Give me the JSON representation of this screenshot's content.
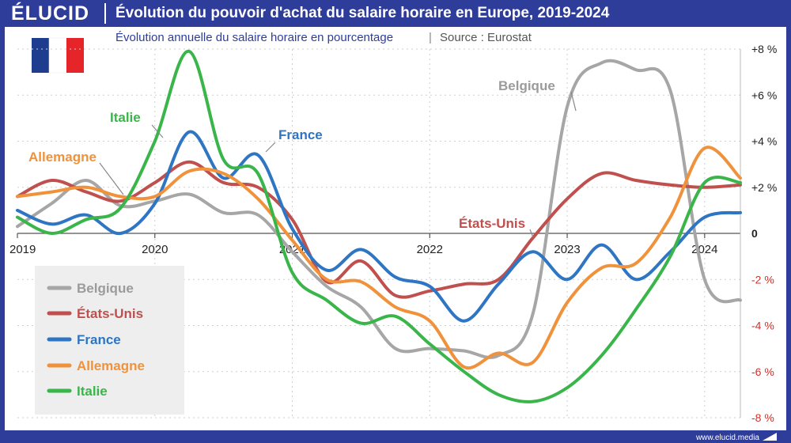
{
  "brand": {
    "logo": "ÉLUCID",
    "website": "www.elucid.media"
  },
  "title": "Évolution du pouvoir d'achat du salaire horaire en Europe, 2019-2024",
  "subtitle": "Évolution annuelle du salaire horaire en pourcentage",
  "source": "Source : Eurostat",
  "source_sep": "|",
  "flag": {
    "name": "France",
    "colors": [
      "#1f3d8f",
      "#ffffff",
      "#e5252a"
    ]
  },
  "chart_data": {
    "type": "line",
    "title": "Évolution du pouvoir d'achat du salaire horaire en Europe, 2019-2024",
    "x_labels": [
      "2019",
      "2020",
      "2021",
      "2022",
      "2023",
      "2024"
    ],
    "x_ticks": [
      2019,
      2020,
      2021,
      2022,
      2023,
      2024
    ],
    "xlim": [
      2019,
      2024.26
    ],
    "ylim": [
      -8,
      8
    ],
    "y_ticks": [
      8,
      6,
      4,
      2,
      0,
      -2,
      -4,
      -6,
      -8
    ],
    "y_tick_labels": [
      "+8 %",
      "+6 %",
      "+4 %",
      "+2 %",
      "0",
      "-2 %",
      "-4 %",
      "-6 %",
      "-8 %"
    ],
    "grid": true,
    "legend_position": "bottom-left",
    "series": [
      {
        "name": "Belgique",
        "color": "#a6a6a6",
        "x": [
          2019,
          2019.25,
          2019.5,
          2019.75,
          2020,
          2020.25,
          2020.5,
          2020.75,
          2021,
          2021.25,
          2021.5,
          2021.75,
          2022,
          2022.25,
          2022.5,
          2022.75,
          2023,
          2023.25,
          2023.5,
          2023.75,
          2024,
          2024.26
        ],
        "y": [
          0.3,
          1.3,
          2.3,
          1.2,
          1.4,
          1.7,
          0.9,
          0.8,
          -0.8,
          -2.3,
          -3.2,
          -5.0,
          -5.0,
          -5.1,
          -5.3,
          -3.5,
          5.5,
          7.4,
          7.1,
          6.2,
          -2.0,
          -2.9
        ]
      },
      {
        "name": "États-Unis",
        "color": "#c0504d",
        "x": [
          2019,
          2019.25,
          2019.5,
          2019.75,
          2020,
          2020.25,
          2020.5,
          2020.75,
          2021,
          2021.25,
          2021.5,
          2021.75,
          2022,
          2022.25,
          2022.5,
          2022.75,
          2023,
          2023.25,
          2023.5,
          2023.75,
          2024,
          2024.26
        ],
        "y": [
          1.6,
          2.3,
          1.8,
          1.4,
          2.2,
          3.1,
          2.2,
          2.0,
          0.6,
          -2.1,
          -1.2,
          -2.7,
          -2.5,
          -2.2,
          -2.0,
          -0.2,
          1.5,
          2.6,
          2.3,
          2.1,
          2.0,
          2.1
        ]
      },
      {
        "name": "France",
        "color": "#2e75c3",
        "x": [
          2019,
          2019.25,
          2019.5,
          2019.75,
          2020,
          2020.25,
          2020.5,
          2020.75,
          2021,
          2021.25,
          2021.5,
          2021.75,
          2022,
          2022.25,
          2022.5,
          2022.75,
          2023,
          2023.25,
          2023.5,
          2023.75,
          2024,
          2024.26
        ],
        "y": [
          1.0,
          0.4,
          0.8,
          0.0,
          1.3,
          4.4,
          2.4,
          3.4,
          0.2,
          -1.6,
          -0.7,
          -1.9,
          -2.3,
          -3.8,
          -2.2,
          -0.8,
          -2.0,
          -0.5,
          -2.0,
          -0.8,
          0.7,
          0.9
        ]
      },
      {
        "name": "Allemagne",
        "color": "#f0923b",
        "x": [
          2019,
          2019.25,
          2019.5,
          2019.75,
          2020,
          2020.25,
          2020.5,
          2020.75,
          2021,
          2021.25,
          2021.5,
          2021.75,
          2022,
          2022.25,
          2022.5,
          2022.75,
          2023,
          2023.25,
          2023.5,
          2023.75,
          2024,
          2024.26
        ],
        "y": [
          1.6,
          1.8,
          2.0,
          1.6,
          1.6,
          2.7,
          2.6,
          1.5,
          -0.3,
          -2.0,
          -2.1,
          -3.2,
          -3.8,
          -5.8,
          -5.2,
          -5.6,
          -3.0,
          -1.5,
          -1.3,
          0.7,
          3.7,
          2.4
        ]
      },
      {
        "name": "Italie",
        "color": "#3ab54a",
        "x": [
          2019,
          2019.25,
          2019.5,
          2019.75,
          2020,
          2020.25,
          2020.5,
          2020.75,
          2021,
          2021.25,
          2021.5,
          2021.75,
          2022,
          2022.25,
          2022.5,
          2022.75,
          2023,
          2023.25,
          2023.5,
          2023.75,
          2024,
          2024.26
        ],
        "y": [
          0.7,
          0.0,
          0.6,
          1.1,
          4.0,
          7.9,
          3.2,
          2.6,
          -1.7,
          -2.9,
          -3.9,
          -3.6,
          -4.8,
          -6.0,
          -7.0,
          -7.3,
          -6.7,
          -5.3,
          -3.3,
          -1.0,
          2.2,
          2.2
        ]
      }
    ],
    "annotations": [
      {
        "text": "Belgique",
        "series": "Belgique"
      },
      {
        "text": "États-Unis",
        "series": "États-Unis"
      },
      {
        "text": "France",
        "series": "France"
      },
      {
        "text": "Allemagne",
        "series": "Allemagne"
      },
      {
        "text": "Italie",
        "series": "Italie"
      }
    ]
  }
}
